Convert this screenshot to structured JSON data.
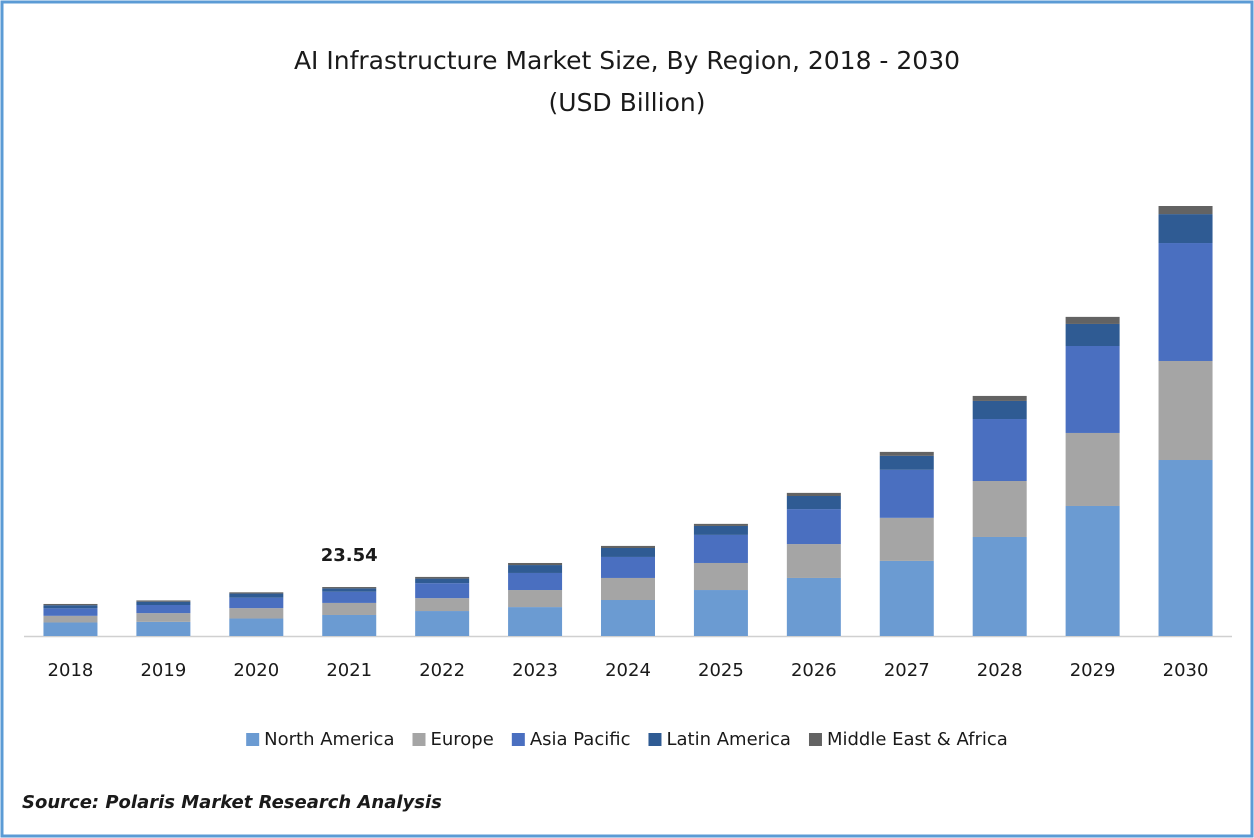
{
  "chart_data": {
    "type": "stacked_bar",
    "title": "AI Infrastructure Market Size, By Region, 2018 - 2030",
    "subtitle": "(USD Billion)",
    "categories": [
      "2018",
      "2019",
      "2020",
      "2021",
      "2022",
      "2023",
      "2024",
      "2025",
      "2026",
      "2027",
      "2028",
      "2029",
      "2030"
    ],
    "series": [
      {
        "name": "North America",
        "color": "#6b9bd2",
        "values": [
          6.5,
          6.8,
          8.4,
          10.1,
          12.0,
          13.9,
          17.3,
          22.1,
          27.9,
          36.1,
          47.6,
          62.5,
          84.6
        ]
      },
      {
        "name": "Europe",
        "color": "#a5a5a5",
        "values": [
          3.2,
          4.2,
          5.0,
          5.8,
          6.2,
          8.2,
          10.6,
          13.0,
          16.3,
          20.7,
          26.9,
          35.1,
          47.6
        ]
      },
      {
        "name": "Asia Pacific",
        "color": "#4a6fc0",
        "values": [
          3.6,
          3.9,
          5.0,
          5.4,
          7.2,
          8.2,
          10.1,
          13.5,
          16.8,
          23.1,
          29.8,
          41.8,
          56.7
        ]
      },
      {
        "name": "Latin America",
        "color": "#2f5b93",
        "values": [
          1.5,
          1.6,
          2.0,
          1.6,
          2.2,
          3.8,
          4.3,
          4.3,
          6.3,
          6.7,
          8.7,
          10.6,
          13.9
        ]
      },
      {
        "name": "Middle East & Africa",
        "color": "#636363",
        "values": [
          0.6,
          0.6,
          0.6,
          0.64,
          0.8,
          1.0,
          1.0,
          1.0,
          1.5,
          1.9,
          2.4,
          3.4,
          3.9
        ]
      }
    ],
    "annotations": [
      {
        "category": "2021",
        "value": 23.54
      }
    ],
    "legend": "bottom",
    "source": "Source: Polaris  Market Research Analysis"
  }
}
